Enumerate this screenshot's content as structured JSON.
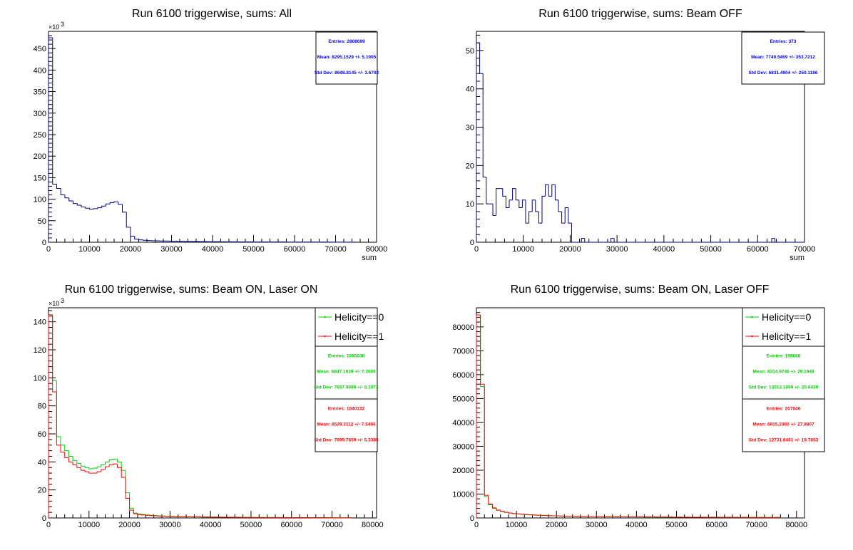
{
  "chart_data": [
    {
      "type": "bar",
      "title": "Run 6100 triggerwise, sums: All",
      "xlabel": "sum",
      "ylabel": "",
      "xlim": [
        0,
        80000
      ],
      "ylim": [
        0,
        490000
      ],
      "x_ticks": [
        "0",
        "10000",
        "20000",
        "30000",
        "40000",
        "50000",
        "60000",
        "70000",
        "80000"
      ],
      "y_ticks": [
        "0",
        "50",
        "100",
        "150",
        "200",
        "250",
        "300",
        "350",
        "400",
        "450"
      ],
      "y_tick_values": [
        0,
        50000,
        100000,
        150000,
        200000,
        250000,
        300000,
        350000,
        400000,
        450000
      ],
      "y_exponent": "×10",
      "y_exponent_power": "3",
      "bin_width": 1000,
      "series": [
        {
          "color": "#000080",
          "values": [
            475000,
            135000,
            125000,
            110000,
            103000,
            96000,
            90000,
            86000,
            82000,
            79000,
            77000,
            78000,
            80000,
            84000,
            89000,
            92000,
            94000,
            88000,
            70000,
            35000,
            14000,
            7000,
            5500,
            4500,
            4000,
            3600,
            3300,
            3000,
            2800,
            2600,
            2400,
            2200,
            2000,
            1900,
            1800,
            1700,
            1600,
            1500,
            1400,
            1300,
            1200,
            1150,
            1100,
            1050,
            1000,
            950,
            900,
            850,
            800,
            760,
            720,
            690,
            660,
            630,
            600,
            580,
            560,
            540,
            520,
            500,
            480,
            460,
            440,
            420,
            400,
            380,
            360,
            340,
            320,
            300,
            280,
            260,
            240,
            220,
            200
          ]
        }
      ],
      "stats": [
        {
          "color": "#0000ff",
          "lines": [
            "Entries: 2808699",
            "Mean: 8295.1529 +/- 5.1905",
            "Std Dev: 8698.8145 +/- 3.6702"
          ]
        }
      ],
      "legend": []
    },
    {
      "type": "bar",
      "title": "Run 6100 triggerwise, sums: Beam OFF",
      "xlabel": "sum",
      "ylabel": "",
      "xlim": [
        0,
        70000
      ],
      "ylim": [
        0,
        55
      ],
      "x_ticks": [
        "0",
        "10000",
        "20000",
        "30000",
        "40000",
        "50000",
        "60000",
        "70000"
      ],
      "y_ticks": [
        "0",
        "10",
        "20",
        "30",
        "40",
        "50"
      ],
      "y_tick_values": [
        0,
        10,
        20,
        30,
        40,
        50
      ],
      "y_exponent": "",
      "y_exponent_power": "",
      "bin_width": 700,
      "series": [
        {
          "color": "#000080",
          "values": [
            52,
            44,
            17,
            10,
            10,
            7,
            14,
            14,
            12,
            9,
            11,
            14,
            11,
            9,
            11,
            5,
            8,
            11,
            8,
            5,
            12,
            15,
            12,
            15,
            11,
            8,
            5,
            9,
            5,
            0,
            0,
            0,
            1,
            0,
            0,
            0,
            0,
            0,
            0,
            0,
            0,
            1,
            0,
            0,
            0,
            0,
            0,
            0,
            0,
            0,
            0,
            0,
            0,
            0,
            0,
            0,
            0,
            0,
            0,
            0,
            0,
            0,
            0,
            0,
            0,
            0,
            0,
            0,
            0,
            0,
            0,
            0,
            0,
            0,
            0,
            0,
            0,
            0,
            0,
            0,
            0,
            0,
            0,
            0,
            0,
            0,
            0,
            0,
            0,
            0,
            1,
            0,
            0,
            0,
            0,
            0,
            0,
            0,
            0,
            0
          ]
        }
      ],
      "stats": [
        {
          "color": "#0000ff",
          "lines": [
            "Entries: 373",
            "Mean: 7749.5469 +/- 353.7212",
            "Std Dev: 6831.4904 +/- 250.1186"
          ]
        }
      ],
      "legend": []
    },
    {
      "type": "bar",
      "title": "Run 6100 triggerwise, sums: Beam ON, Laser ON",
      "xlabel": "",
      "ylabel": "",
      "xlim": [
        0,
        81000
      ],
      "ylim": [
        0,
        150000
      ],
      "x_ticks": [
        "0",
        "10000",
        "20000",
        "30000",
        "40000",
        "50000",
        "60000",
        "70000",
        "80000"
      ],
      "y_ticks": [
        "0",
        "20",
        "40",
        "60",
        "80",
        "100",
        "120",
        "140"
      ],
      "y_tick_values": [
        0,
        20000,
        40000,
        60000,
        80000,
        100000,
        120000,
        140000
      ],
      "y_exponent": "×10",
      "y_exponent_power": "3",
      "bin_width": 1000,
      "series": [
        {
          "name": "Helicity==0",
          "color": "#00cc00",
          "values": [
            145000,
            98000,
            58000,
            52000,
            48000,
            44000,
            41000,
            39000,
            37000,
            36000,
            35000,
            35500,
            36500,
            38000,
            40000,
            41500,
            42000,
            40000,
            34000,
            18000,
            7000,
            3500,
            2800,
            2400,
            2100,
            1900,
            1700,
            1550,
            1400,
            1300,
            1200,
            1100,
            1000,
            950,
            900,
            850,
            800,
            760,
            720,
            680,
            650,
            620,
            590,
            560,
            530,
            500,
            480,
            460,
            440,
            420,
            400,
            380,
            360,
            340,
            330,
            320,
            310,
            300,
            290,
            280,
            270,
            260,
            250,
            240,
            230,
            220,
            210,
            200,
            190,
            180,
            170,
            160,
            150,
            140,
            130
          ]
        },
        {
          "name": "Helicity==1",
          "color": "#ff0000",
          "values": [
            145000,
            90000,
            52000,
            47000,
            43000,
            40000,
            38000,
            36000,
            34000,
            33000,
            32000,
            32000,
            33000,
            34500,
            36500,
            38000,
            38500,
            36000,
            29000,
            14000,
            5500,
            3000,
            2400,
            2100,
            1850,
            1650,
            1500,
            1350,
            1250,
            1150,
            1050,
            980,
            920,
            860,
            810,
            770,
            730,
            690,
            650,
            620,
            590,
            560,
            530,
            500,
            480,
            460,
            440,
            420,
            400,
            380,
            360,
            340,
            330,
            320,
            310,
            300,
            290,
            280,
            270,
            260,
            250,
            240,
            230,
            220,
            210,
            200,
            190,
            180,
            170,
            160,
            150,
            140,
            130,
            120,
            110
          ]
        }
      ],
      "stats": [
        {
          "color": "#00cc00",
          "lines": [
            "Entries: 1085530",
            "Mean: 6847.1039 +/- 7.3500",
            "Std Dev: 7657.9080 +/- 5.1973"
          ]
        },
        {
          "color": "#ff0000",
          "lines": [
            "Entries: 1040132",
            "Mean: 6529.3112 +/- 7.5496",
            "Std Dev: 7699.7659 +/- 5.3385"
          ]
        }
      ],
      "legend": [
        "Helicity==0",
        "Helicity==1"
      ]
    },
    {
      "type": "bar",
      "title": "Run 6100 triggerwise, sums: Beam ON, Laser OFF",
      "xlabel": "",
      "ylabel": "",
      "xlim": [
        0,
        82000
      ],
      "ylim": [
        0,
        88000
      ],
      "x_ticks": [
        "0",
        "10000",
        "20000",
        "30000",
        "40000",
        "50000",
        "60000",
        "70000",
        "80000"
      ],
      "y_ticks": [
        "0",
        "10000",
        "20000",
        "30000",
        "40000",
        "50000",
        "60000",
        "70000",
        "80000"
      ],
      "y_tick_values": [
        0,
        10000,
        20000,
        30000,
        40000,
        50000,
        60000,
        70000,
        80000
      ],
      "y_exponent": "",
      "y_exponent_power": "",
      "bin_width": 1000,
      "series": [
        {
          "name": "Helicity==0",
          "color": "#00cc00",
          "values": [
            85000,
            55000,
            9000,
            5500,
            4000,
            3200,
            2700,
            2300,
            2000,
            1800,
            1650,
            1500,
            1400,
            1300,
            1200,
            1120,
            1050,
            990,
            930,
            880,
            840,
            800,
            760,
            730,
            700,
            670,
            640,
            620,
            600,
            580,
            560,
            540,
            520,
            500,
            480,
            470,
            460,
            450,
            440,
            430,
            420,
            410,
            400,
            390,
            380,
            370,
            360,
            350,
            340,
            330,
            320,
            310,
            300,
            295,
            290,
            285,
            280,
            275,
            270,
            265,
            260,
            255,
            250,
            245,
            240,
            235,
            230,
            225,
            220,
            215,
            210,
            205,
            200,
            195,
            190,
            185
          ]
        },
        {
          "name": "Helicity==1",
          "color": "#ff0000",
          "values": [
            85000,
            56000,
            9500,
            5800,
            4200,
            3300,
            2800,
            2400,
            2100,
            1850,
            1700,
            1550,
            1450,
            1350,
            1250,
            1160,
            1080,
            1010,
            950,
            900,
            860,
            820,
            780,
            750,
            720,
            690,
            660,
            640,
            620,
            600,
            580,
            560,
            540,
            520,
            500,
            490,
            480,
            470,
            460,
            450,
            440,
            430,
            420,
            410,
            400,
            390,
            380,
            370,
            360,
            350,
            340,
            330,
            320,
            315,
            310,
            305,
            300,
            295,
            290,
            285,
            280,
            275,
            270,
            265,
            260,
            255,
            250,
            245,
            240,
            235,
            230,
            225,
            220,
            215,
            210,
            205
          ]
        }
      ],
      "stats": [
        {
          "color": "#00cc00",
          "lines": [
            "Entries: 198680",
            "Mean: 6314.9746 +/- 29.1949",
            "Std Dev: 13013.1099 +/- 20.6439"
          ]
        },
        {
          "color": "#ff0000",
          "lines": [
            "Entries: 207046",
            "Mean: 6015.2300 +/- 27.9807",
            "Std Dev: 12731.8461 +/- 19.7853"
          ]
        }
      ],
      "legend": [
        "Helicity==0",
        "Helicity==1"
      ]
    }
  ]
}
